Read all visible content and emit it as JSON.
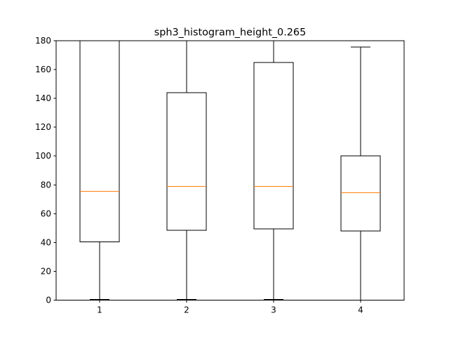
{
  "chart_data": {
    "type": "box",
    "title": "sph3_histogram_height_0.265",
    "xlabel": "",
    "ylabel": "",
    "ylim": [
      0,
      180
    ],
    "yticks": [
      0,
      20,
      40,
      60,
      80,
      100,
      120,
      140,
      160,
      180
    ],
    "categories": [
      "1",
      "2",
      "3",
      "4"
    ],
    "boxes": [
      {
        "label": "1",
        "whisker_low": 0.5,
        "q1": 40.5,
        "median": 75.5,
        "q3": 180,
        "whisker_high": 180
      },
      {
        "label": "2",
        "whisker_low": 0.5,
        "q1": 48.5,
        "median": 79,
        "q3": 144,
        "whisker_high": 180
      },
      {
        "label": "3",
        "whisker_low": 0.5,
        "q1": 49.5,
        "median": 79,
        "q3": 165,
        "whisker_high": 180
      },
      {
        "label": "4",
        "whisker_low": 0,
        "q1": 48,
        "median": 74.5,
        "q3": 100,
        "whisker_high": 175.5
      }
    ],
    "grid": false,
    "colors": {
      "box": "#000000",
      "median": "#ff7f0e",
      "background": "#ffffff"
    }
  }
}
